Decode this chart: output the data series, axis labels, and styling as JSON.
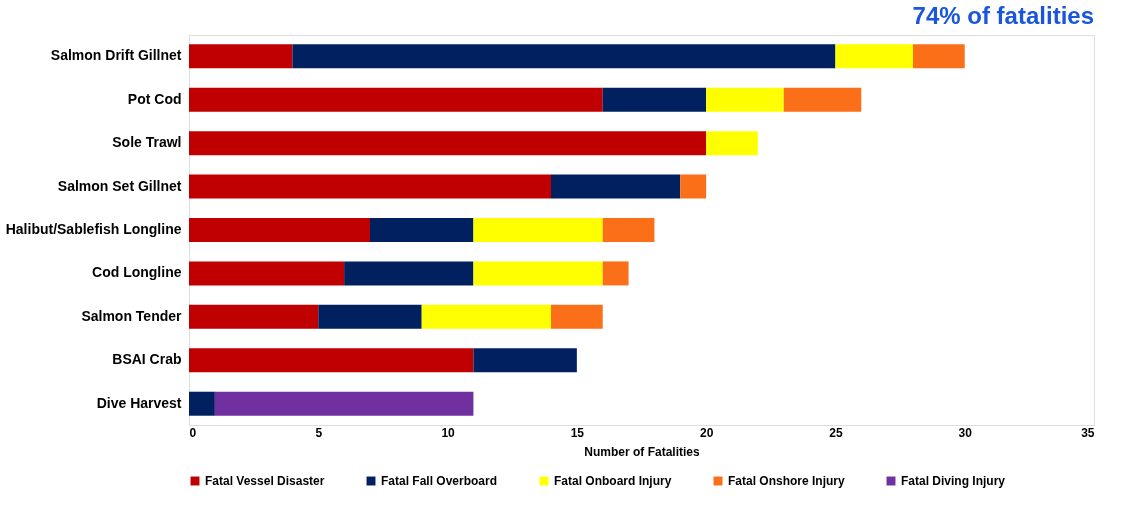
{
  "chart_data": {
    "type": "bar",
    "orientation": "horizontal",
    "stacked": true,
    "title": "74% of fatalities",
    "xlabel": "Number of Fatalities",
    "categories": [
      "Salmon Drift Gillnet",
      "Pot Cod",
      "Sole Trawl",
      "Salmon Set Gillnet",
      "Halibut/Sablefish Longline",
      "Cod Longline",
      "Salmon Tender",
      "BSAI Crab",
      "Dive Harvest"
    ],
    "series": [
      {
        "name": "Fatal Vessel Disaster",
        "color": "#c00000",
        "values": [
          4,
          16,
          20,
          14,
          7,
          6,
          5,
          11,
          null
        ]
      },
      {
        "name": "Fatal Fall Overboard",
        "color": "#002060",
        "values": [
          21,
          4,
          null,
          5,
          4,
          5,
          4,
          4,
          1
        ]
      },
      {
        "name": "Fatal Onboard Injury",
        "color": "#ffff00",
        "values": [
          3,
          3,
          2,
          null,
          5,
          5,
          5,
          null,
          null
        ]
      },
      {
        "name": "Fatal Onshore Injury",
        "color": "#fa6f18",
        "values": [
          2,
          3,
          null,
          1,
          2,
          1,
          2,
          null,
          null
        ]
      },
      {
        "name": "Fatal Diving Injury",
        "color": "#7030a0",
        "values": [
          null,
          null,
          null,
          null,
          null,
          null,
          null,
          null,
          10
        ]
      }
    ],
    "xlim": [
      0,
      35
    ],
    "xticks": [
      0,
      5,
      10,
      15,
      20,
      25,
      30,
      35
    ],
    "grid": false,
    "legend": "bottom"
  }
}
